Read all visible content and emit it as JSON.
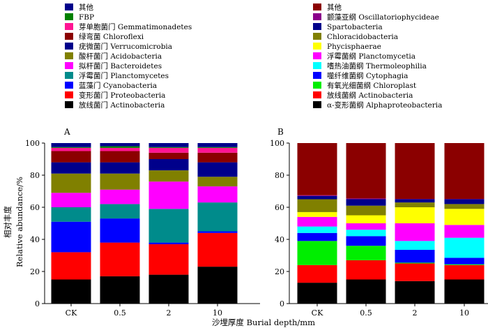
{
  "xlabel": "沙埋厚度 Burial depth/mm",
  "chart_data": [
    {
      "type": "bar",
      "stacked": true,
      "panel_label": "A",
      "title": "",
      "xlabel": "沙埋厚度 Burial depth/mm",
      "ylabel_cn": "相对丰度",
      "ylabel_en": "Relative abundance/%",
      "ylim": [
        0,
        100
      ],
      "yticks": [
        "0",
        "20",
        "40",
        "60",
        "80",
        "100"
      ],
      "categories": [
        "CK",
        "0.5",
        "2",
        "10"
      ],
      "legend_placement": "top-left",
      "series": [
        {
          "name": "放线菌门 Actinobacteria",
          "color": "#000000",
          "values": [
            15,
            17,
            18,
            23
          ]
        },
        {
          "name": "变形菌门 Proteobacteria",
          "color": "#ff0000",
          "values": [
            17,
            21,
            19,
            21
          ]
        },
        {
          "name": "蓝藻门 Cyanobacteria",
          "color": "#0000ff",
          "values": [
            19,
            15,
            1,
            1
          ]
        },
        {
          "name": "浮霉菌门 Planctomycetes",
          "color": "#008b8b",
          "values": [
            9,
            9,
            21,
            18
          ]
        },
        {
          "name": "拟杆菌门 Bacteroidetes",
          "color": "#ff00ff",
          "values": [
            9,
            9,
            17,
            10
          ]
        },
        {
          "name": "酸杆菌门 Acidobacteria",
          "color": "#808000",
          "values": [
            12,
            10,
            7,
            6
          ]
        },
        {
          "name": "疣微菌门 Verrucomicrobia",
          "color": "#00008b",
          "values": [
            7,
            7,
            7,
            9
          ]
        },
        {
          "name": "绿弯菌 Chloroflexi",
          "color": "#8b0000",
          "values": [
            7,
            7,
            4,
            6
          ]
        },
        {
          "name": "芽单胞菌门 Gemmatimonadetes",
          "color": "#ff1493",
          "values": [
            2,
            2,
            3,
            3
          ]
        },
        {
          "name": "FBP",
          "color": "#008000",
          "values": [
            0.5,
            1,
            0.5,
            0.5
          ]
        },
        {
          "name": "其他",
          "color": "#00008b",
          "values": [
            2.5,
            2,
            2.5,
            2.5
          ]
        }
      ]
    },
    {
      "type": "bar",
      "stacked": true,
      "panel_label": "B",
      "title": "",
      "xlabel": "沙埋厚度 Burial depth/mm",
      "ylabel": "",
      "ylim": [
        0,
        100
      ],
      "yticks": [
        "0",
        "20",
        "40",
        "60",
        "80",
        "100"
      ],
      "categories": [
        "CK",
        "0.5",
        "2",
        "10"
      ],
      "legend_placement": "top-right",
      "series": [
        {
          "name": "α-变形菌纲 Alphaproteobacteria",
          "color": "#000000",
          "values": [
            13,
            15,
            14,
            15
          ]
        },
        {
          "name": "放线菌纲 Actinobacteria",
          "color": "#ff0000",
          "values": [
            11,
            12,
            11,
            9
          ]
        },
        {
          "name": "有氧光细菌纲 Chloroplast",
          "color": "#00ee00",
          "values": [
            15,
            9,
            0.5,
            0.5
          ]
        },
        {
          "name": "噬纤维菌纲 Cytophagia",
          "color": "#0000ff",
          "values": [
            5,
            6,
            8,
            4
          ]
        },
        {
          "name": "嗜热油菌纲 Thermoleophilia",
          "color": "#00ffff",
          "values": [
            4,
            4,
            5.5,
            12.5
          ]
        },
        {
          "name": "浮霉菌纲 Planctomycetia",
          "color": "#ff00ff",
          "values": [
            6,
            4,
            11,
            8
          ]
        },
        {
          "name": "Phycisphaerae",
          "color": "#ffff00",
          "values": [
            3,
            5,
            10,
            10
          ]
        },
        {
          "name": "Chloracidobacteria",
          "color": "#808000",
          "values": [
            8,
            6,
            3,
            3
          ]
        },
        {
          "name": "Spartobacteria",
          "color": "#00008b",
          "values": [
            2,
            4,
            2,
            3
          ]
        },
        {
          "name": "颤藻亚纲 Oscillatoriophycideae",
          "color": "#8b008b",
          "values": [
            0.5,
            0.5,
            0.2,
            0.2
          ]
        },
        {
          "name": "其他",
          "color": "#8b0000",
          "values": [
            32.5,
            34.5,
            34.8,
            34.8
          ]
        }
      ]
    }
  ]
}
